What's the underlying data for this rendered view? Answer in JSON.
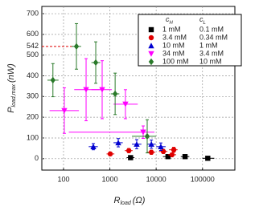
{
  "chart_data": {
    "type": "scatter",
    "xlabel": {
      "main": "R",
      "sub": "load",
      "unit": "(Ω)"
    },
    "ylabel": {
      "main": "P",
      "sub": "load,max",
      "unit": "(nW)"
    },
    "xlog": true,
    "xlim": [
      34,
      500000
    ],
    "xticks": [
      100,
      1000,
      10000,
      100000
    ],
    "ylim": [
      -55,
      735
    ],
    "yticks": [
      0,
      100,
      200,
      300,
      400,
      500,
      600,
      700
    ],
    "grid": true,
    "legend_headers": [
      {
        "main": "c",
        "sub": "H"
      },
      {
        "main": "c",
        "sub": "L"
      }
    ],
    "annotation_y": 542,
    "annotation_color": "#e00000",
    "series": [
      {
        "name": "1 mM",
        "name2": "0.1 mM",
        "color": "#000000",
        "marker": "square",
        "x": [
          2800,
          18000,
          42000,
          130000
        ],
        "values": [
          5,
          10,
          10,
          2
        ],
        "xmin": [
          2300,
          14000,
          34000,
          100000
        ],
        "xmax": [
          3400,
          23000,
          52000,
          180000
        ],
        "yerr": [
          5,
          6,
          6,
          3
        ]
      },
      {
        "name": "3.4 mM",
        "name2": "0.34 mM",
        "color": "#e00000",
        "marker": "circle",
        "x": [
          1020,
          2570,
          7870,
          14300,
          22000,
          24000
        ],
        "values": [
          23,
          39,
          31,
          35,
          19,
          43
        ],
        "xmin": [
          850,
          2100,
          6300,
          11500,
          18000,
          19000
        ],
        "xmax": [
          1250,
          3100,
          9600,
          17500,
          27000,
          29000
        ],
        "yerr": [
          8,
          10,
          10,
          10,
          8,
          12
        ]
      },
      {
        "name": "10 mM",
        "name2": "1 mM",
        "color": "#0000d0",
        "marker": "triangle",
        "x": [
          440,
          1520,
          3800,
          7870,
          12600
        ],
        "values": [
          58,
          77,
          70,
          70,
          58
        ],
        "xmin": [
          350,
          1200,
          3000,
          6300,
          10000
        ],
        "xmax": [
          550,
          1900,
          4800,
          9800,
          16000
        ],
        "yerr": [
          15,
          20,
          22,
          20,
          18
        ]
      },
      {
        "name": "34 mM",
        "name2": "3.4 mM",
        "color": "#ff00ff",
        "marker": "down-triangle",
        "x": [
          104,
          307,
          682,
          2170,
          5240
        ],
        "values": [
          232,
          333,
          333,
          263,
          128
        ],
        "xmin": [
          50,
          170,
          400,
          1200,
          130
        ],
        "xmax": [
          215,
          600,
          1100,
          4000,
          9200
        ],
        "yerr": [
          110,
          150,
          140,
          70,
          30
        ]
      },
      {
        "name": "100 mM",
        "name2": "10 mM",
        "color": "#2a7a2a",
        "marker": "diamond",
        "x": [
          59,
          190,
          496,
          1300,
          6400
        ],
        "values": [
          379,
          542,
          464,
          313,
          108
        ],
        "xmin": [
          45,
          150,
          400,
          1050,
          3000
        ],
        "xmax": [
          78,
          240,
          620,
          1600,
          10000
        ],
        "yerr": [
          80,
          110,
          100,
          100,
          80
        ]
      }
    ]
  }
}
